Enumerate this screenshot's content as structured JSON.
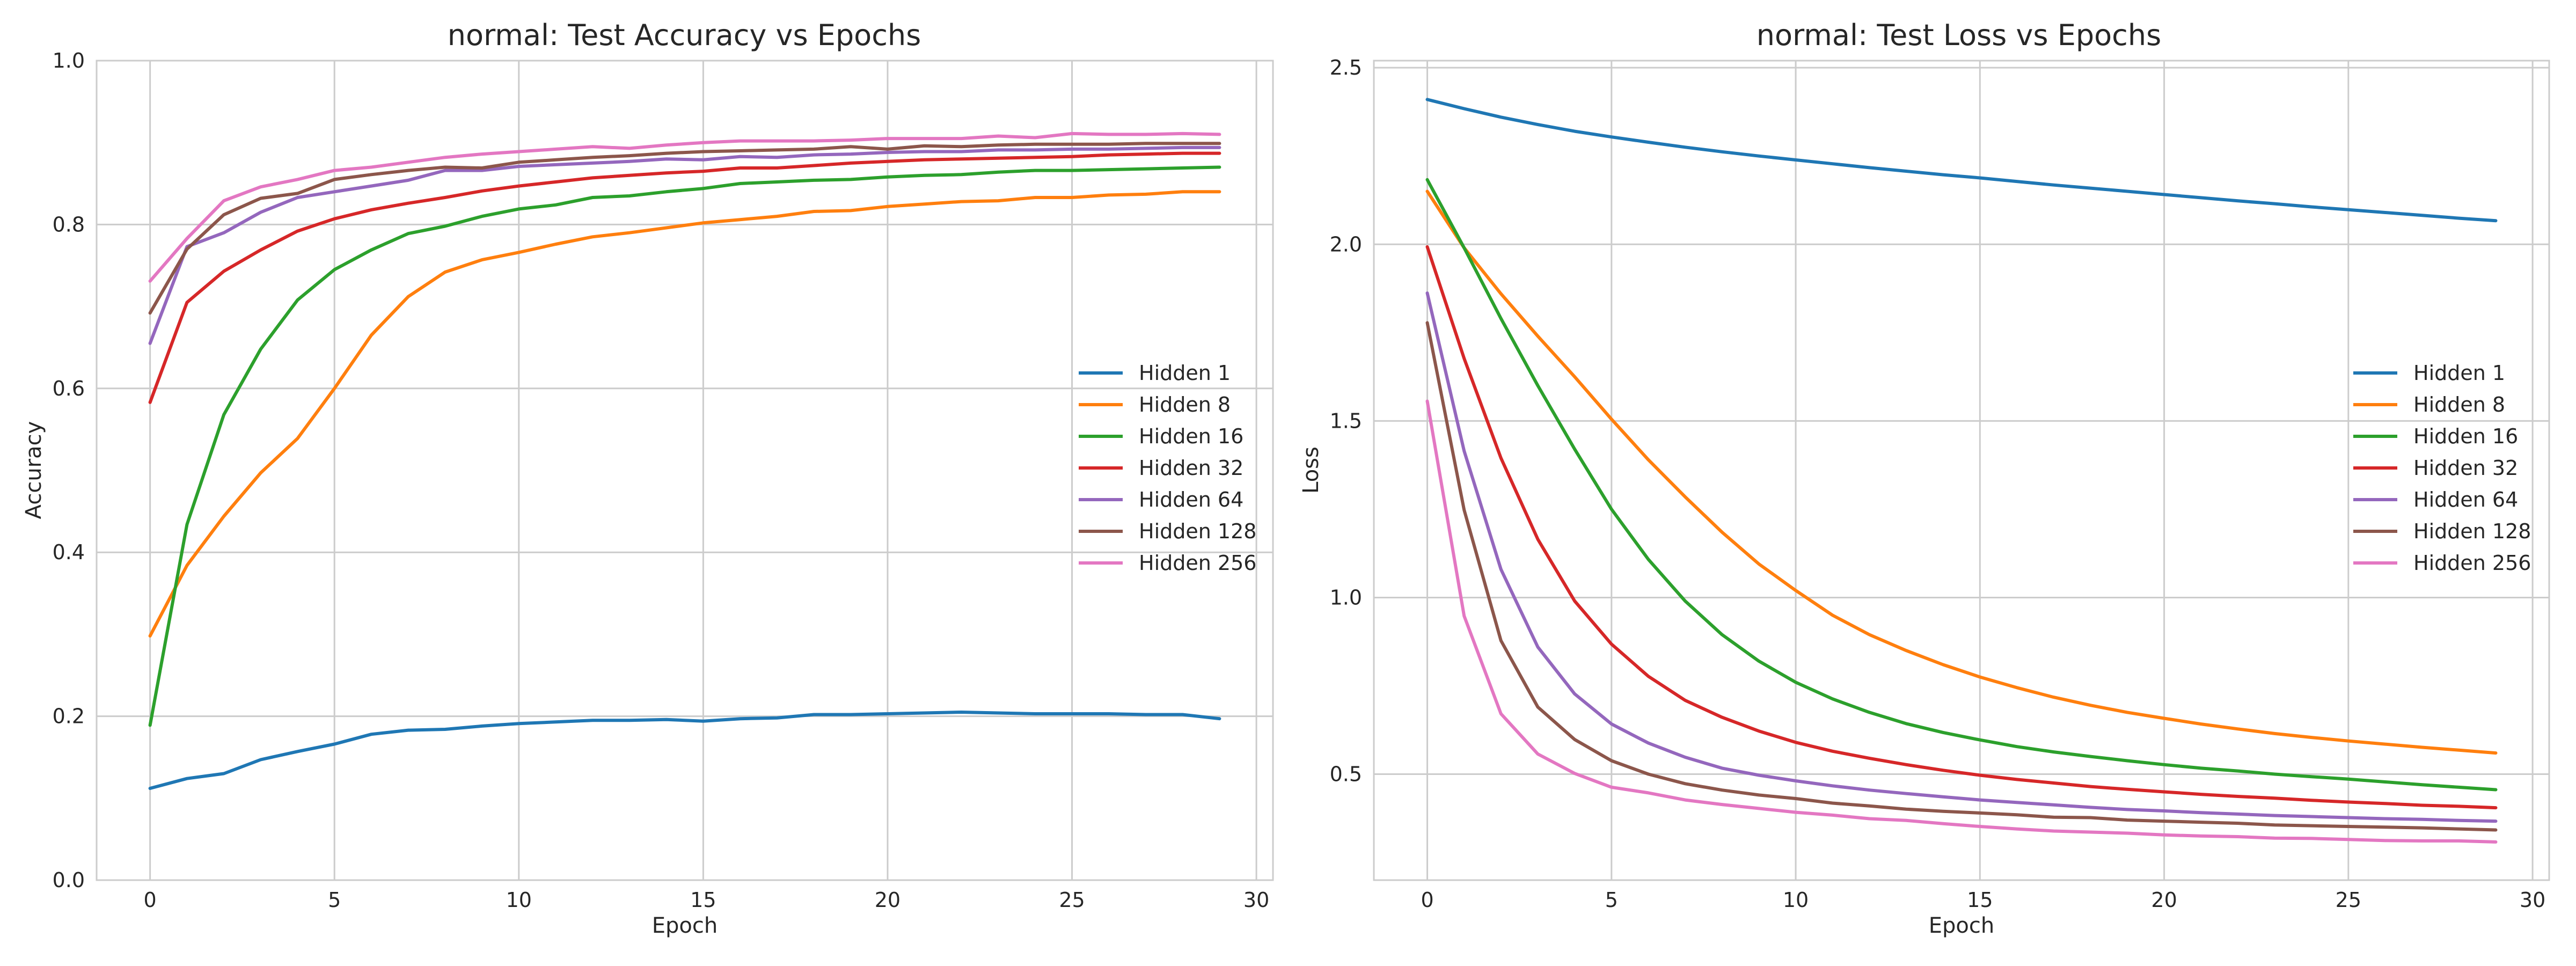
{
  "colors": {
    "background": "#ffffff",
    "grid": "#cccccc",
    "text": "#262626",
    "series": [
      "#1f77b4",
      "#ff7f0e",
      "#2ca02c",
      "#d62728",
      "#9467bd",
      "#8c564b",
      "#e377c2"
    ]
  },
  "chart_data": [
    {
      "type": "line",
      "title": "normal: Test Accuracy vs Epochs",
      "xlabel": "Epoch",
      "ylabel": "Accuracy",
      "xlim": [
        -1.45,
        30.45
      ],
      "ylim": [
        0.0,
        1.0
      ],
      "xticks": [
        0,
        5,
        10,
        15,
        20,
        25,
        30
      ],
      "xtick_labels": [
        "0",
        "5",
        "10",
        "15",
        "20",
        "25",
        "30"
      ],
      "yticks": [
        0.0,
        0.2,
        0.4,
        0.6,
        0.8,
        1.0
      ],
      "ytick_labels": [
        "0.0",
        "0.2",
        "0.4",
        "0.6",
        "0.8",
        "1.0"
      ],
      "grid": true,
      "legend_position": "center-right",
      "x": [
        0,
        1,
        2,
        3,
        4,
        5,
        6,
        7,
        8,
        9,
        10,
        11,
        12,
        13,
        14,
        15,
        16,
        17,
        18,
        19,
        20,
        21,
        22,
        23,
        24,
        25,
        26,
        27,
        28,
        29
      ],
      "series": [
        {
          "name": "Hidden 1",
          "values": [
            0.112,
            0.124,
            0.13,
            0.147,
            0.157,
            0.166,
            0.178,
            0.183,
            0.184,
            0.188,
            0.191,
            0.193,
            0.195,
            0.195,
            0.196,
            0.194,
            0.197,
            0.198,
            0.202,
            0.202,
            0.203,
            0.204,
            0.205,
            0.204,
            0.203,
            0.203,
            0.203,
            0.202,
            0.202,
            0.197
          ]
        },
        {
          "name": "Hidden 8",
          "values": [
            0.298,
            0.384,
            0.444,
            0.497,
            0.539,
            0.6,
            0.665,
            0.712,
            0.742,
            0.757,
            0.766,
            0.776,
            0.785,
            0.79,
            0.796,
            0.802,
            0.806,
            0.81,
            0.816,
            0.817,
            0.822,
            0.825,
            0.828,
            0.829,
            0.833,
            0.833,
            0.836,
            0.837,
            0.84,
            0.84
          ]
        },
        {
          "name": "Hidden 16",
          "values": [
            0.189,
            0.434,
            0.568,
            0.648,
            0.708,
            0.745,
            0.769,
            0.789,
            0.798,
            0.81,
            0.819,
            0.824,
            0.833,
            0.835,
            0.84,
            0.844,
            0.85,
            0.852,
            0.854,
            0.855,
            0.858,
            0.86,
            0.861,
            0.864,
            0.866,
            0.866,
            0.867,
            0.868,
            0.869,
            0.87
          ]
        },
        {
          "name": "Hidden 32",
          "values": [
            0.583,
            0.705,
            0.743,
            0.769,
            0.792,
            0.807,
            0.818,
            0.826,
            0.833,
            0.841,
            0.847,
            0.852,
            0.857,
            0.86,
            0.863,
            0.865,
            0.869,
            0.869,
            0.872,
            0.875,
            0.877,
            0.879,
            0.88,
            0.881,
            0.882,
            0.883,
            0.885,
            0.886,
            0.887,
            0.887
          ]
        },
        {
          "name": "Hidden 64",
          "values": [
            0.655,
            0.773,
            0.79,
            0.815,
            0.833,
            0.84,
            0.847,
            0.854,
            0.866,
            0.866,
            0.871,
            0.873,
            0.875,
            0.877,
            0.88,
            0.879,
            0.883,
            0.882,
            0.885,
            0.886,
            0.888,
            0.889,
            0.889,
            0.891,
            0.891,
            0.892,
            0.892,
            0.893,
            0.894,
            0.894
          ]
        },
        {
          "name": "Hidden 128",
          "values": [
            0.692,
            0.77,
            0.812,
            0.832,
            0.838,
            0.855,
            0.861,
            0.866,
            0.87,
            0.869,
            0.876,
            0.879,
            0.882,
            0.884,
            0.887,
            0.889,
            0.89,
            0.891,
            0.892,
            0.895,
            0.892,
            0.896,
            0.895,
            0.897,
            0.898,
            0.898,
            0.898,
            0.899,
            0.899,
            0.899
          ]
        },
        {
          "name": "Hidden 256",
          "values": [
            0.731,
            0.783,
            0.829,
            0.846,
            0.855,
            0.866,
            0.87,
            0.876,
            0.882,
            0.886,
            0.889,
            0.892,
            0.895,
            0.893,
            0.897,
            0.9,
            0.902,
            0.902,
            0.902,
            0.903,
            0.905,
            0.905,
            0.905,
            0.908,
            0.906,
            0.911,
            0.91,
            0.91,
            0.911,
            0.91
          ]
        }
      ]
    },
    {
      "type": "line",
      "title": "normal: Test Loss vs Epochs",
      "xlabel": "Epoch",
      "ylabel": "Loss",
      "xlim": [
        -1.45,
        30.45
      ],
      "ylim": [
        0.2,
        2.52
      ],
      "xticks": [
        0,
        5,
        10,
        15,
        20,
        25,
        30
      ],
      "xtick_labels": [
        "0",
        "5",
        "10",
        "15",
        "20",
        "25",
        "30"
      ],
      "yticks": [
        0.5,
        1.0,
        1.5,
        2.0,
        2.5
      ],
      "ytick_labels": [
        "0.5",
        "1.0",
        "1.5",
        "2.0",
        "2.5"
      ],
      "grid": true,
      "legend_position": "center-right",
      "x": [
        0,
        1,
        2,
        3,
        4,
        5,
        6,
        7,
        8,
        9,
        10,
        11,
        12,
        13,
        14,
        15,
        16,
        17,
        18,
        19,
        20,
        21,
        22,
        23,
        24,
        25,
        26,
        27,
        28,
        29
      ],
      "series": [
        {
          "name": "Hidden 1",
          "values": [
            2.41,
            2.384,
            2.36,
            2.339,
            2.32,
            2.304,
            2.289,
            2.275,
            2.262,
            2.25,
            2.239,
            2.228,
            2.217,
            2.207,
            2.197,
            2.188,
            2.178,
            2.168,
            2.159,
            2.15,
            2.141,
            2.132,
            2.123,
            2.115,
            2.106,
            2.098,
            2.09,
            2.082,
            2.074,
            2.067
          ]
        },
        {
          "name": "Hidden 8",
          "values": [
            2.15,
            1.99,
            1.86,
            1.74,
            1.625,
            1.505,
            1.39,
            1.285,
            1.185,
            1.095,
            1.02,
            0.95,
            0.895,
            0.85,
            0.81,
            0.775,
            0.745,
            0.718,
            0.695,
            0.675,
            0.658,
            0.642,
            0.628,
            0.615,
            0.604,
            0.594,
            0.585,
            0.576,
            0.568,
            0.56
          ]
        },
        {
          "name": "Hidden 16",
          "values": [
            2.183,
            1.99,
            1.79,
            1.6,
            1.42,
            1.25,
            1.108,
            0.99,
            0.895,
            0.82,
            0.76,
            0.713,
            0.675,
            0.643,
            0.618,
            0.597,
            0.578,
            0.563,
            0.55,
            0.538,
            0.527,
            0.517,
            0.509,
            0.5,
            0.493,
            0.486,
            0.478,
            0.47,
            0.463,
            0.456
          ]
        },
        {
          "name": "Hidden 32",
          "values": [
            1.993,
            1.677,
            1.395,
            1.165,
            0.99,
            0.868,
            0.777,
            0.709,
            0.661,
            0.622,
            0.59,
            0.565,
            0.545,
            0.527,
            0.511,
            0.497,
            0.485,
            0.475,
            0.465,
            0.457,
            0.45,
            0.443,
            0.437,
            0.432,
            0.426,
            0.421,
            0.417,
            0.412,
            0.409,
            0.405
          ]
        },
        {
          "name": "Hidden 64",
          "values": [
            1.862,
            1.415,
            1.08,
            0.86,
            0.727,
            0.642,
            0.588,
            0.548,
            0.517,
            0.497,
            0.481,
            0.467,
            0.455,
            0.445,
            0.436,
            0.427,
            0.42,
            0.413,
            0.406,
            0.4,
            0.396,
            0.391,
            0.387,
            0.383,
            0.38,
            0.377,
            0.374,
            0.372,
            0.369,
            0.367
          ]
        },
        {
          "name": "Hidden 128",
          "values": [
            1.778,
            1.248,
            0.878,
            0.69,
            0.598,
            0.538,
            0.5,
            0.473,
            0.455,
            0.441,
            0.431,
            0.418,
            0.41,
            0.401,
            0.395,
            0.39,
            0.385,
            0.378,
            0.377,
            0.37,
            0.367,
            0.364,
            0.361,
            0.356,
            0.354,
            0.352,
            0.35,
            0.348,
            0.345,
            0.342
          ]
        },
        {
          "name": "Hidden 256",
          "values": [
            1.556,
            0.948,
            0.671,
            0.557,
            0.502,
            0.463,
            0.447,
            0.427,
            0.414,
            0.403,
            0.392,
            0.384,
            0.374,
            0.369,
            0.36,
            0.352,
            0.345,
            0.339,
            0.336,
            0.333,
            0.328,
            0.325,
            0.323,
            0.319,
            0.318,
            0.315,
            0.312,
            0.311,
            0.311,
            0.308
          ]
        }
      ]
    }
  ]
}
